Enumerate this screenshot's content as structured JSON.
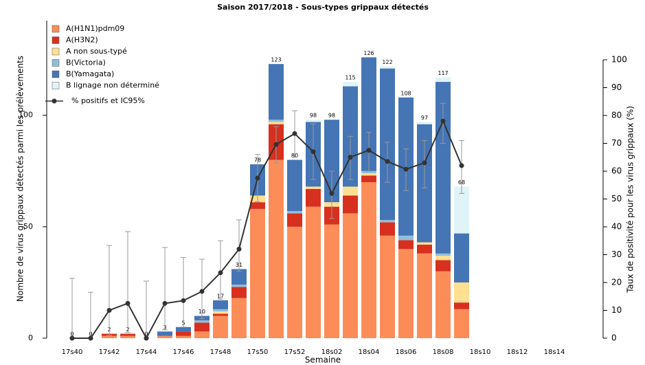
{
  "chart_data": {
    "type": "bar",
    "title": "Saison 2017/2018 - Sous-types grippaux détectés",
    "x_label": "Semaine",
    "y_label": "Nombre de virus grippaux détectés parmi les prélèvements",
    "y2_label": "Taux de positivité pour les virus grippaux (%)",
    "stacked": true,
    "legend": "top-left",
    "categories": [
      "17s40",
      null,
      "17s42",
      null,
      "17s44",
      null,
      "17s46",
      null,
      "17s48",
      null,
      "17s50",
      null,
      "17s52",
      null,
      "18s02",
      null,
      "18s04",
      null,
      "18s06",
      null,
      "18s08",
      null,
      "18s10",
      null,
      "18s12",
      null,
      "18s14",
      null
    ],
    "series": [
      {
        "name": "A(H1N1)pdm09",
        "color": "#fc8d59",
        "values": [
          0,
          0,
          1,
          1,
          0,
          1,
          1,
          3,
          10,
          18,
          58,
          80,
          50,
          59,
          51,
          56,
          70,
          46,
          40,
          38,
          30,
          13,
          null,
          null,
          null,
          null,
          null,
          null
        ]
      },
      {
        "name": "A(H3N2)",
        "color": "#d7301f",
        "values": [
          0,
          0,
          1,
          1,
          0,
          0,
          2,
          4,
          1,
          5,
          3,
          16,
          6,
          8,
          8,
          8,
          3,
          6,
          4,
          4,
          5,
          3,
          null,
          null,
          null,
          null,
          null,
          null
        ]
      },
      {
        "name": "A non sous-typé",
        "color": "#fee090",
        "values": [
          0,
          0,
          0,
          0,
          0,
          0,
          0,
          0,
          1,
          0,
          3,
          1,
          0,
          1,
          2,
          4,
          1,
          0,
          0,
          1,
          2,
          9,
          null,
          null,
          null,
          null,
          null,
          null
        ]
      },
      {
        "name": "B(Victoria)",
        "color": "#91bfdb",
        "values": [
          0,
          0,
          0,
          0,
          0,
          0,
          0,
          1,
          1,
          1,
          0,
          1,
          1,
          0,
          0,
          0,
          1,
          1,
          2,
          0,
          1,
          0,
          null,
          null,
          null,
          null,
          null,
          null
        ]
      },
      {
        "name": "B(Yamagata)",
        "color": "#4575b4",
        "values": [
          0,
          0,
          0,
          0,
          0,
          2,
          2,
          2,
          4,
          7,
          14,
          25,
          23,
          29,
          37,
          45,
          51,
          68,
          62,
          53,
          77,
          22,
          null,
          null,
          null,
          null,
          null,
          null
        ]
      },
      {
        "name": "B lignage non déterminé",
        "color": "#e0f3f8",
        "values": [
          0,
          0,
          0,
          0,
          0,
          0,
          0,
          0,
          0,
          0,
          0,
          0,
          0,
          1,
          0,
          2,
          0,
          1,
          0,
          1,
          2,
          21,
          null,
          null,
          null,
          null,
          null,
          null
        ]
      },
      {
        "name": "% positifs et IC95%",
        "color": "#333333",
        "axis": "y2",
        "type": "line",
        "values": [
          0,
          0,
          10,
          12.5,
          0,
          12.5,
          13.5,
          16.8,
          23.5,
          32,
          57.5,
          69.6,
          73.5,
          67,
          52,
          65,
          67.5,
          63.5,
          60.7,
          63,
          78,
          62,
          null,
          null,
          null,
          null,
          null,
          null
        ],
        "error_low": [
          0,
          0,
          1,
          2,
          0,
          3,
          4,
          7,
          14,
          24,
          49,
          63,
          65,
          57,
          43,
          57,
          60,
          56,
          53,
          54,
          70,
          52,
          null,
          null,
          null,
          null,
          null,
          null
        ],
        "error_high": [
          21.5,
          16.5,
          33.3,
          38.3,
          20.5,
          32.6,
          29,
          28.4,
          35,
          42.5,
          66,
          76,
          81.7,
          77,
          60,
          72.5,
          74,
          70.4,
          68,
          71,
          84.4,
          71,
          null,
          null,
          null,
          null,
          null,
          null
        ]
      }
    ],
    "totals": [
      0,
      0,
      2,
      2,
      0,
      3,
      5,
      10,
      17,
      31,
      78,
      123,
      80,
      98,
      98,
      115,
      126,
      122,
      108,
      97,
      117,
      68,
      null,
      null,
      null,
      null,
      null,
      null
    ],
    "ylim": [
      0,
      140
    ],
    "yticks": [
      0,
      50,
      100
    ],
    "y2lim": [
      0,
      100
    ],
    "y2ticks": [
      0,
      10,
      20,
      30,
      40,
      50,
      60,
      70,
      80,
      90,
      100
    ]
  }
}
